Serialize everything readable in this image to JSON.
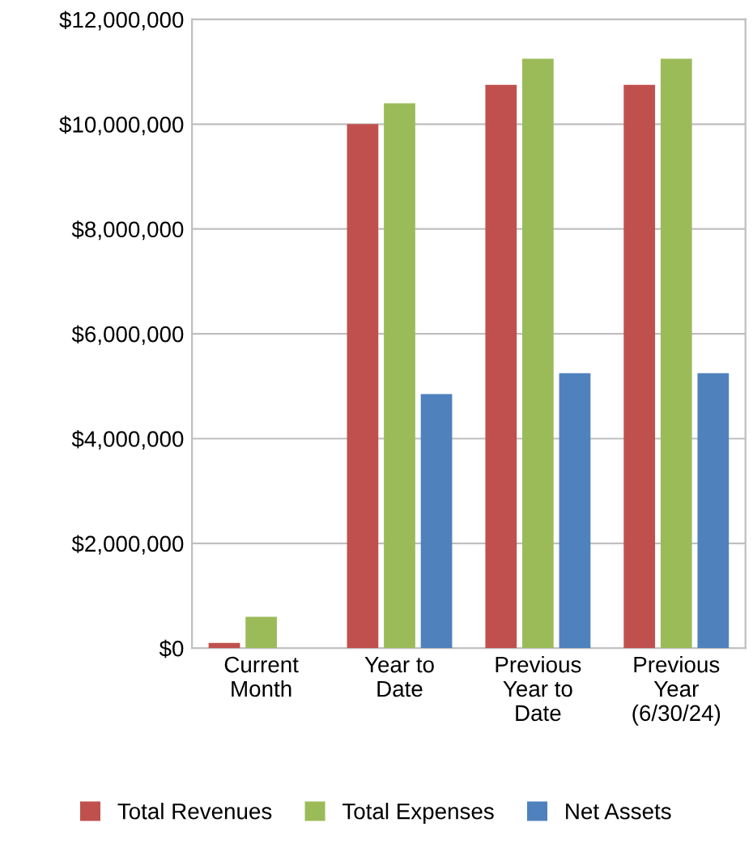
{
  "chart_data": {
    "type": "bar",
    "categories": [
      "Current\nMonth",
      "Year to\nDate",
      "Previous\nYear to\nDate",
      "Previous\nYear\n(6/30/24)"
    ],
    "series": [
      {
        "name": "Total Revenues",
        "color": "#c0504d",
        "values": [
          100000,
          10000000,
          10750000,
          10750000
        ]
      },
      {
        "name": "Total Expenses",
        "color": "#9bbb59",
        "values": [
          600000,
          10400000,
          11250000,
          11250000
        ]
      },
      {
        "name": "Net Assets",
        "color": "#4f81bd",
        "values": [
          null,
          4850000,
          5250000,
          5250000
        ]
      }
    ],
    "ylim": [
      0,
      12000000
    ],
    "yticks": [
      {
        "value": 0,
        "label": "$0"
      },
      {
        "value": 2000000,
        "label": "$2,000,000"
      },
      {
        "value": 4000000,
        "label": "$4,000,000"
      },
      {
        "value": 6000000,
        "label": "$6,000,000"
      },
      {
        "value": 8000000,
        "label": "$8,000,000"
      },
      {
        "value": 10000000,
        "label": "$10,000,000"
      },
      {
        "value": 12000000,
        "label": "$12,000,000"
      }
    ],
    "grid": "y",
    "legend": "bottom"
  }
}
